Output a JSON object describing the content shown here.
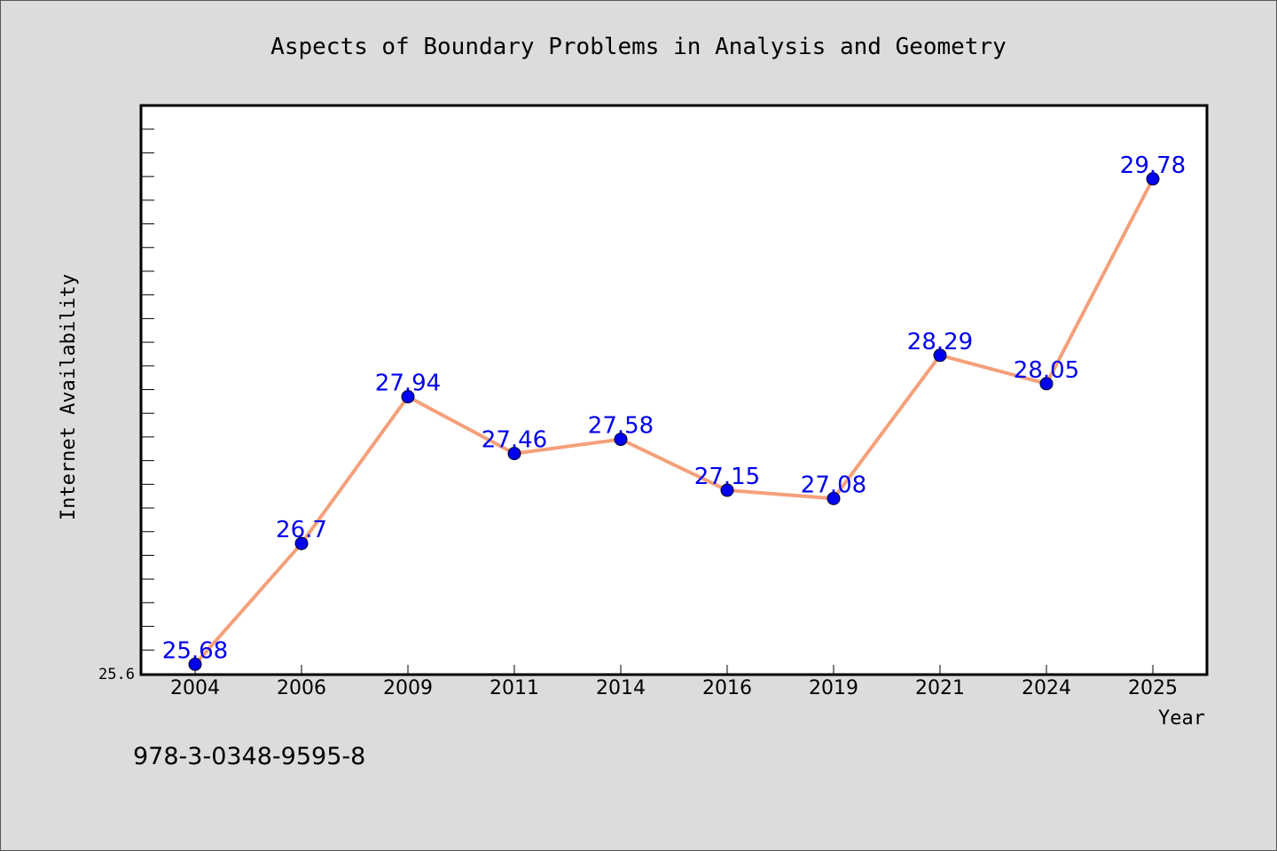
{
  "chart_data": {
    "type": "line",
    "title": "Aspects of Boundary Problems in Analysis and Geometry",
    "xlabel": "Year",
    "ylabel": "Internet Availability",
    "categories": [
      "2004",
      "2006",
      "2009",
      "2011",
      "2014",
      "2016",
      "2019",
      "2021",
      "2024",
      "2025"
    ],
    "series": [
      {
        "values": [
          25.68,
          26.7,
          27.94,
          27.46,
          27.58,
          27.15,
          27.08,
          28.29,
          28.05,
          29.78
        ],
        "labels": [
          "25.68",
          "26.7",
          "27.94",
          "27.46",
          "27.58",
          "27.15",
          "27.08",
          "28.29",
          "28.05",
          "29.78"
        ],
        "line_color": "#f4a07a",
        "marker_color": "#0000ee"
      }
    ],
    "ylim": [
      25.6,
      30.4
    ],
    "y_tick_label": "25.6",
    "grid": false,
    "legend": "none"
  },
  "footer": {
    "isbn": "978-3-0348-9595-8"
  },
  "colors": {
    "background": "#dcdcdc",
    "plot_background": "#ffffff",
    "data_label": "#0000ee"
  }
}
